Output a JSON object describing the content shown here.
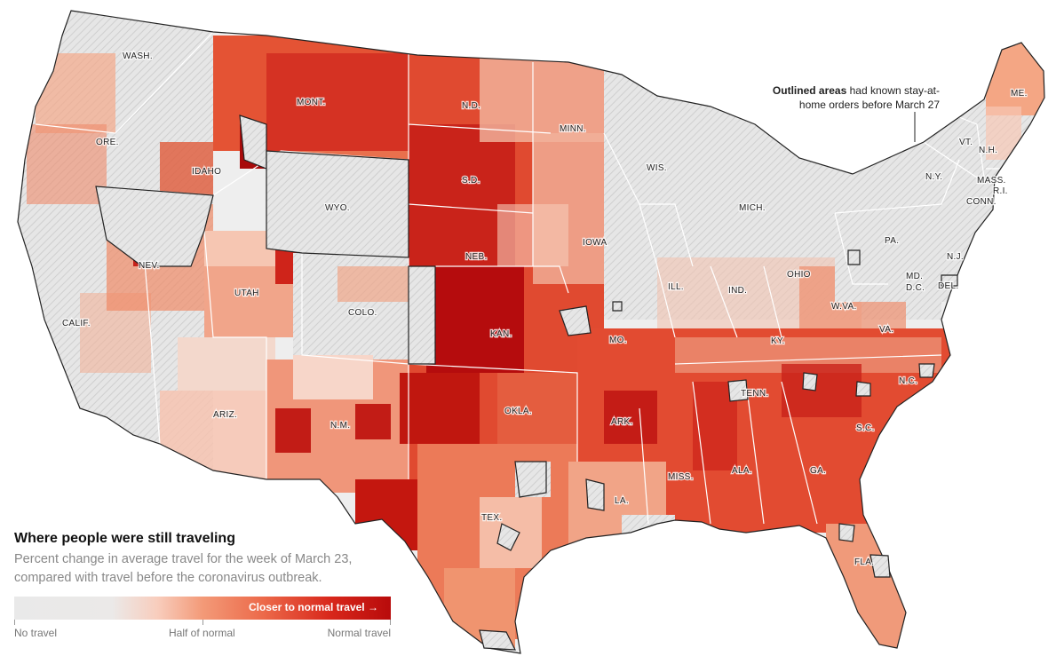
{
  "callout": {
    "bold": "Outlined areas",
    "rest": " had known stay-at-home orders before March 27"
  },
  "legend": {
    "title": "Where people were still traveling",
    "subtitle": "Percent change in average travel for the week of March 23, compared with travel before the coronavirus outbreak.",
    "bar_label": "Closer to normal travel",
    "tick_left": "No travel",
    "tick_mid": "Half of normal",
    "tick_right": "Normal travel"
  },
  "states": {
    "wa": "WASH.",
    "or": "ORE.",
    "ca": "CALIF.",
    "id": "IDAHO",
    "nv": "NEV.",
    "mt": "MONT.",
    "wy": "WYO.",
    "ut": "UTAH",
    "az": "ARIZ.",
    "co": "COLO.",
    "nm": "N.M.",
    "nd": "N.D.",
    "sd": "S.D.",
    "ne": "NEB.",
    "ks": "KAN.",
    "ok": "OKLA.",
    "tx": "TEX.",
    "mn": "MINN.",
    "ia": "IOWA",
    "mo": "MO.",
    "ar": "ARK.",
    "la": "LA.",
    "wi": "WIS.",
    "il": "ILL.",
    "mi": "MICH.",
    "in": "IND.",
    "oh": "OHIO",
    "ky": "KY.",
    "tn": "TENN.",
    "ms": "MISS.",
    "al": "ALA.",
    "ga": "GA.",
    "fl": "FLA.",
    "sc": "S.C.",
    "nc": "N.C.",
    "va": "VA.",
    "wv": "W.VA.",
    "pa": "PA.",
    "ny": "N.Y.",
    "vt": "VT.",
    "nh": "N.H.",
    "me": "ME.",
    "ma": "MASS.",
    "ri": "R.I.",
    "ct": "CONN.",
    "nj": "N.J.",
    "de": "DEL.",
    "md": "MD.",
    "dc": "D.C."
  },
  "colors": {
    "no_travel": "#e9e9e9",
    "half": "#f39a78",
    "normal": "#b80b0b",
    "state_border": "#ffffff",
    "outline": "#222222"
  }
}
